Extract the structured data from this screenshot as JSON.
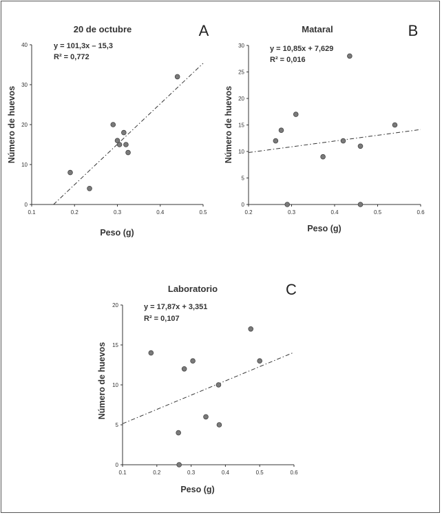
{
  "chart_data": [
    {
      "type": "scatter",
      "panel": "A",
      "title": "20 de octubre",
      "xlabel": "Peso (g)",
      "ylabel": "Número de huevos",
      "xlim": [
        0.1,
        0.5
      ],
      "ylim": [
        0,
        40
      ],
      "xticks": [
        0.1,
        0.2,
        0.3,
        0.4,
        0.5
      ],
      "xtick_labels": [
        "0.1",
        "0.2",
        "0.3",
        "0.4",
        "0.5"
      ],
      "yticks": [
        0,
        10,
        20,
        30,
        40
      ],
      "ytick_labels": [
        "0",
        "10",
        "20",
        "30",
        "40"
      ],
      "equation": "y = 101,3x – 15,3",
      "r2": "R² = 0,772",
      "trendline": {
        "slope": 101.3,
        "intercept": -15.3
      },
      "points": [
        {
          "x": 0.19,
          "y": 8
        },
        {
          "x": 0.235,
          "y": 4
        },
        {
          "x": 0.29,
          "y": 20
        },
        {
          "x": 0.3,
          "y": 16
        },
        {
          "x": 0.305,
          "y": 15
        },
        {
          "x": 0.315,
          "y": 18
        },
        {
          "x": 0.32,
          "y": 15
        },
        {
          "x": 0.325,
          "y": 13
        },
        {
          "x": 0.44,
          "y": 32
        }
      ]
    },
    {
      "type": "scatter",
      "panel": "B",
      "title": "Mataral",
      "xlabel": "Peso (g)",
      "ylabel": "Número de huevos",
      "xlim": [
        0.2,
        0.6
      ],
      "ylim": [
        0,
        30
      ],
      "xticks": [
        0.2,
        0.3,
        0.4,
        0.5,
        0.6
      ],
      "xtick_labels": [
        "0.2",
        "0.3",
        "0.4",
        "0.5",
        "0.6"
      ],
      "yticks": [
        0,
        5,
        10,
        15,
        20,
        25,
        30
      ],
      "ytick_labels": [
        "0",
        "5",
        "10",
        "15",
        "20",
        "25",
        "30"
      ],
      "equation": "y = 10,85x + 7,629",
      "r2": "R² = 0,016",
      "trendline": {
        "slope": 10.85,
        "intercept": 7.629
      },
      "points": [
        {
          "x": 0.263,
          "y": 12
        },
        {
          "x": 0.276,
          "y": 14
        },
        {
          "x": 0.29,
          "y": 0
        },
        {
          "x": 0.31,
          "y": 17
        },
        {
          "x": 0.373,
          "y": 9
        },
        {
          "x": 0.42,
          "y": 12
        },
        {
          "x": 0.435,
          "y": 28
        },
        {
          "x": 0.46,
          "y": 11
        },
        {
          "x": 0.46,
          "y": 0
        },
        {
          "x": 0.54,
          "y": 15
        }
      ]
    },
    {
      "type": "scatter",
      "panel": "C",
      "title": "Laboratorio",
      "xlabel": "Peso (g)",
      "ylabel": "Número de huevos",
      "xlim": [
        0.1,
        0.6
      ],
      "ylim": [
        0,
        20
      ],
      "xticks": [
        0.1,
        0.2,
        0.3,
        0.4,
        0.5,
        0.6
      ],
      "xtick_labels": [
        "0.1",
        "0.2",
        "0.3",
        "0.4",
        "0.5",
        "0.6"
      ],
      "yticks": [
        0,
        5,
        10,
        15,
        20
      ],
      "ytick_labels": [
        "0",
        "5",
        "10",
        "15",
        "20"
      ],
      "equation": "y = 17,87x + 3,351",
      "r2": "R² = 0,107",
      "trendline": {
        "slope": 17.87,
        "intercept": 3.351
      },
      "points": [
        {
          "x": 0.183,
          "y": 14
        },
        {
          "x": 0.263,
          "y": 4
        },
        {
          "x": 0.265,
          "y": 0
        },
        {
          "x": 0.28,
          "y": 12
        },
        {
          "x": 0.305,
          "y": 13
        },
        {
          "x": 0.343,
          "y": 6
        },
        {
          "x": 0.38,
          "y": 10
        },
        {
          "x": 0.382,
          "y": 5
        },
        {
          "x": 0.474,
          "y": 17
        },
        {
          "x": 0.5,
          "y": 13
        }
      ]
    }
  ]
}
